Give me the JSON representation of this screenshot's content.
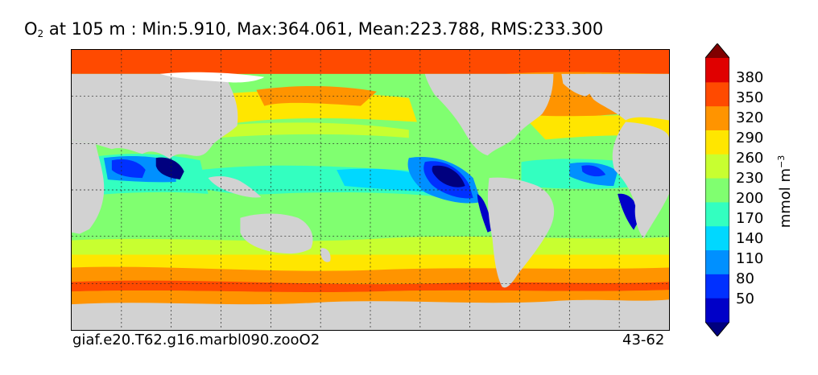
{
  "title": {
    "var_main": "O",
    "var_sub": "2",
    "text": "at 105 m : Min:5.910, Max:364.061, Mean:223.788, RMS:233.300"
  },
  "footer": {
    "case_name": "giaf.e20.T62.g16.marbl090.zooO2",
    "years": "43-62"
  },
  "colorbar": {
    "unit_base": "mmol m",
    "unit_exp": "−3",
    "ticks": [
      "380",
      "350",
      "320",
      "290",
      "260",
      "230",
      "200",
      "170",
      "140",
      "110",
      "80",
      "50"
    ],
    "levels": [
      {
        "label": "< 50",
        "color": "#00007f"
      },
      {
        "label": "50-80",
        "color": "#0000c8"
      },
      {
        "label": "80-110",
        "color": "#0030ff"
      },
      {
        "label": "110-140",
        "color": "#0090ff"
      },
      {
        "label": "140-170",
        "color": "#00d8ff"
      },
      {
        "label": "170-200",
        "color": "#33ffc0"
      },
      {
        "label": "200-230",
        "color": "#80ff70"
      },
      {
        "label": "230-260",
        "color": "#c8ff30"
      },
      {
        "label": "260-290",
        "color": "#ffe600"
      },
      {
        "label": "290-320",
        "color": "#ff9400"
      },
      {
        "label": "320-350",
        "color": "#ff4a00"
      },
      {
        "label": "350-380",
        "color": "#e00000"
      },
      {
        "label": "> 380",
        "color": "#800000"
      }
    ]
  },
  "map": {
    "land_color": "#d2d2d2",
    "grid": true,
    "grid_style": "dotted"
  }
}
